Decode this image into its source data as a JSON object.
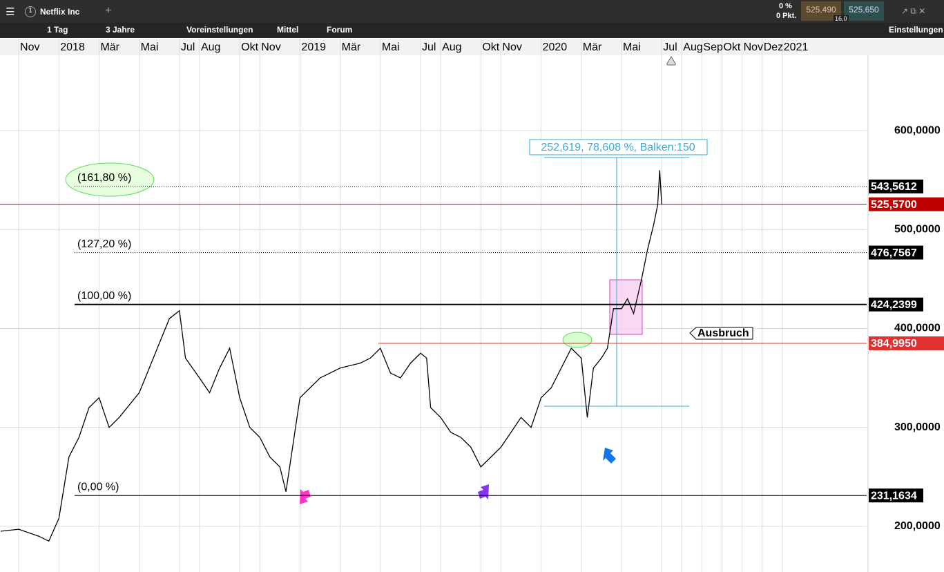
{
  "toolbar": {
    "tab_number": "1",
    "symbol": "Netflix Inc",
    "interval": "1 Tag",
    "range": "3 Jahre",
    "presets": "Voreinstellungen",
    "chart_style": "Mittel",
    "forum": "Forum",
    "settings": "Einstellungen",
    "change_pct": "0 %",
    "change_pts": "0 Pkt.",
    "bid": "525,490",
    "ask": "525,650",
    "spread": "16,0"
  },
  "chart_data": {
    "type": "line",
    "color": "#000000",
    "grid": true,
    "x": [
      -0.9,
      0,
      1,
      1.5,
      2,
      2.5,
      3,
      3.5,
      4,
      4.5,
      5,
      6,
      6.5,
      7,
      7.5,
      8,
      8.3,
      9,
      9.5,
      10,
      10.5,
      11,
      11.5,
      12,
      12.5,
      13,
      13.3,
      14,
      14.5,
      15,
      16,
      17,
      17.5,
      18,
      18.5,
      19,
      19.5,
      20,
      20.3,
      20.5,
      21,
      21.5,
      22,
      22.5,
      23,
      23.5,
      24,
      24.5,
      25,
      25.5,
      26,
      26.5,
      27,
      27.5,
      28,
      28.3,
      28.6,
      29,
      29.3,
      29.6,
      30,
      30.3,
      30.6,
      31,
      31.3,
      31.6,
      31.8,
      31.9,
      32
    ],
    "values": [
      195,
      197,
      190,
      185,
      208,
      270,
      290,
      320,
      330,
      300,
      310,
      335,
      360,
      385,
      410,
      418,
      370,
      350,
      335,
      360,
      380,
      330,
      300,
      290,
      270,
      260,
      235,
      330,
      340,
      350,
      360,
      365,
      370,
      380,
      355,
      350,
      365,
      375,
      370,
      320,
      310,
      295,
      290,
      280,
      260,
      270,
      280,
      295,
      310,
      300,
      330,
      340,
      360,
      380,
      370,
      310,
      360,
      370,
      380,
      420,
      420,
      430,
      415,
      450,
      480,
      505,
      525,
      560,
      525.57
    ],
    "xlim": [
      -0.93,
      42.2
    ],
    "xticks": [
      {
        "value": 0,
        "label": "Nov"
      },
      {
        "value": 2,
        "label": "2018"
      },
      {
        "value": 4,
        "label": "Mär"
      },
      {
        "value": 6,
        "label": "Mai"
      },
      {
        "value": 8,
        "label": "Jul"
      },
      {
        "value": 9,
        "label": "Aug"
      },
      {
        "value": 11,
        "label": "Okt"
      },
      {
        "value": 12,
        "label": "Nov"
      },
      {
        "value": 14,
        "label": "2019"
      },
      {
        "value": 16,
        "label": "Mär"
      },
      {
        "value": 18,
        "label": "Mai"
      },
      {
        "value": 20,
        "label": "Jul"
      },
      {
        "value": 21,
        "label": "Aug"
      },
      {
        "value": 23,
        "label": "Okt"
      },
      {
        "value": 24,
        "label": "Nov"
      },
      {
        "value": 26,
        "label": "2020"
      },
      {
        "value": 28,
        "label": "Mär"
      },
      {
        "value": 30,
        "label": "Mai"
      },
      {
        "value": 32,
        "label": "Jul"
      },
      {
        "value": 33,
        "label": "Aug"
      },
      {
        "value": 34,
        "label": "Sep"
      },
      {
        "value": 35,
        "label": "Okt"
      },
      {
        "value": 36,
        "label": "Nov"
      },
      {
        "value": 37,
        "label": "Dez"
      },
      {
        "value": 38,
        "label": "2021"
      }
    ],
    "ylim": [
      153.8,
      676.2
    ],
    "yticks": [
      {
        "value": 200,
        "label": "200,0000"
      },
      {
        "value": 300,
        "label": "300,0000"
      },
      {
        "value": 400,
        "label": "400,0000"
      },
      {
        "value": 500,
        "label": "500,0000"
      },
      {
        "value": 600,
        "label": "600,0000"
      }
    ],
    "levels": [
      {
        "value": 543.5612,
        "label": "543,5612",
        "color": "#000000",
        "style": "dotted"
      },
      {
        "value": 525.57,
        "label": "525,5700",
        "color": "#c00000",
        "style": "solid"
      },
      {
        "value": 476.7567,
        "label": "476,7567",
        "color": "#000000",
        "style": "dotted"
      },
      {
        "value": 424.2399,
        "label": "424,2399",
        "color": "#000000",
        "style": "thick"
      },
      {
        "value": 384.995,
        "label": "384,9950",
        "color": "#e03030",
        "style": "solid"
      },
      {
        "value": 231.1634,
        "label": "231,1634",
        "color": "#000000",
        "style": "solid"
      }
    ],
    "fib_labels": [
      "(161,80 %)",
      "(127,20 %)",
      "(100,00 %)",
      "(0,00 %)"
    ],
    "measure": "252,619, 78,608 %, Balken:150",
    "breakout": "Ausbruch"
  }
}
